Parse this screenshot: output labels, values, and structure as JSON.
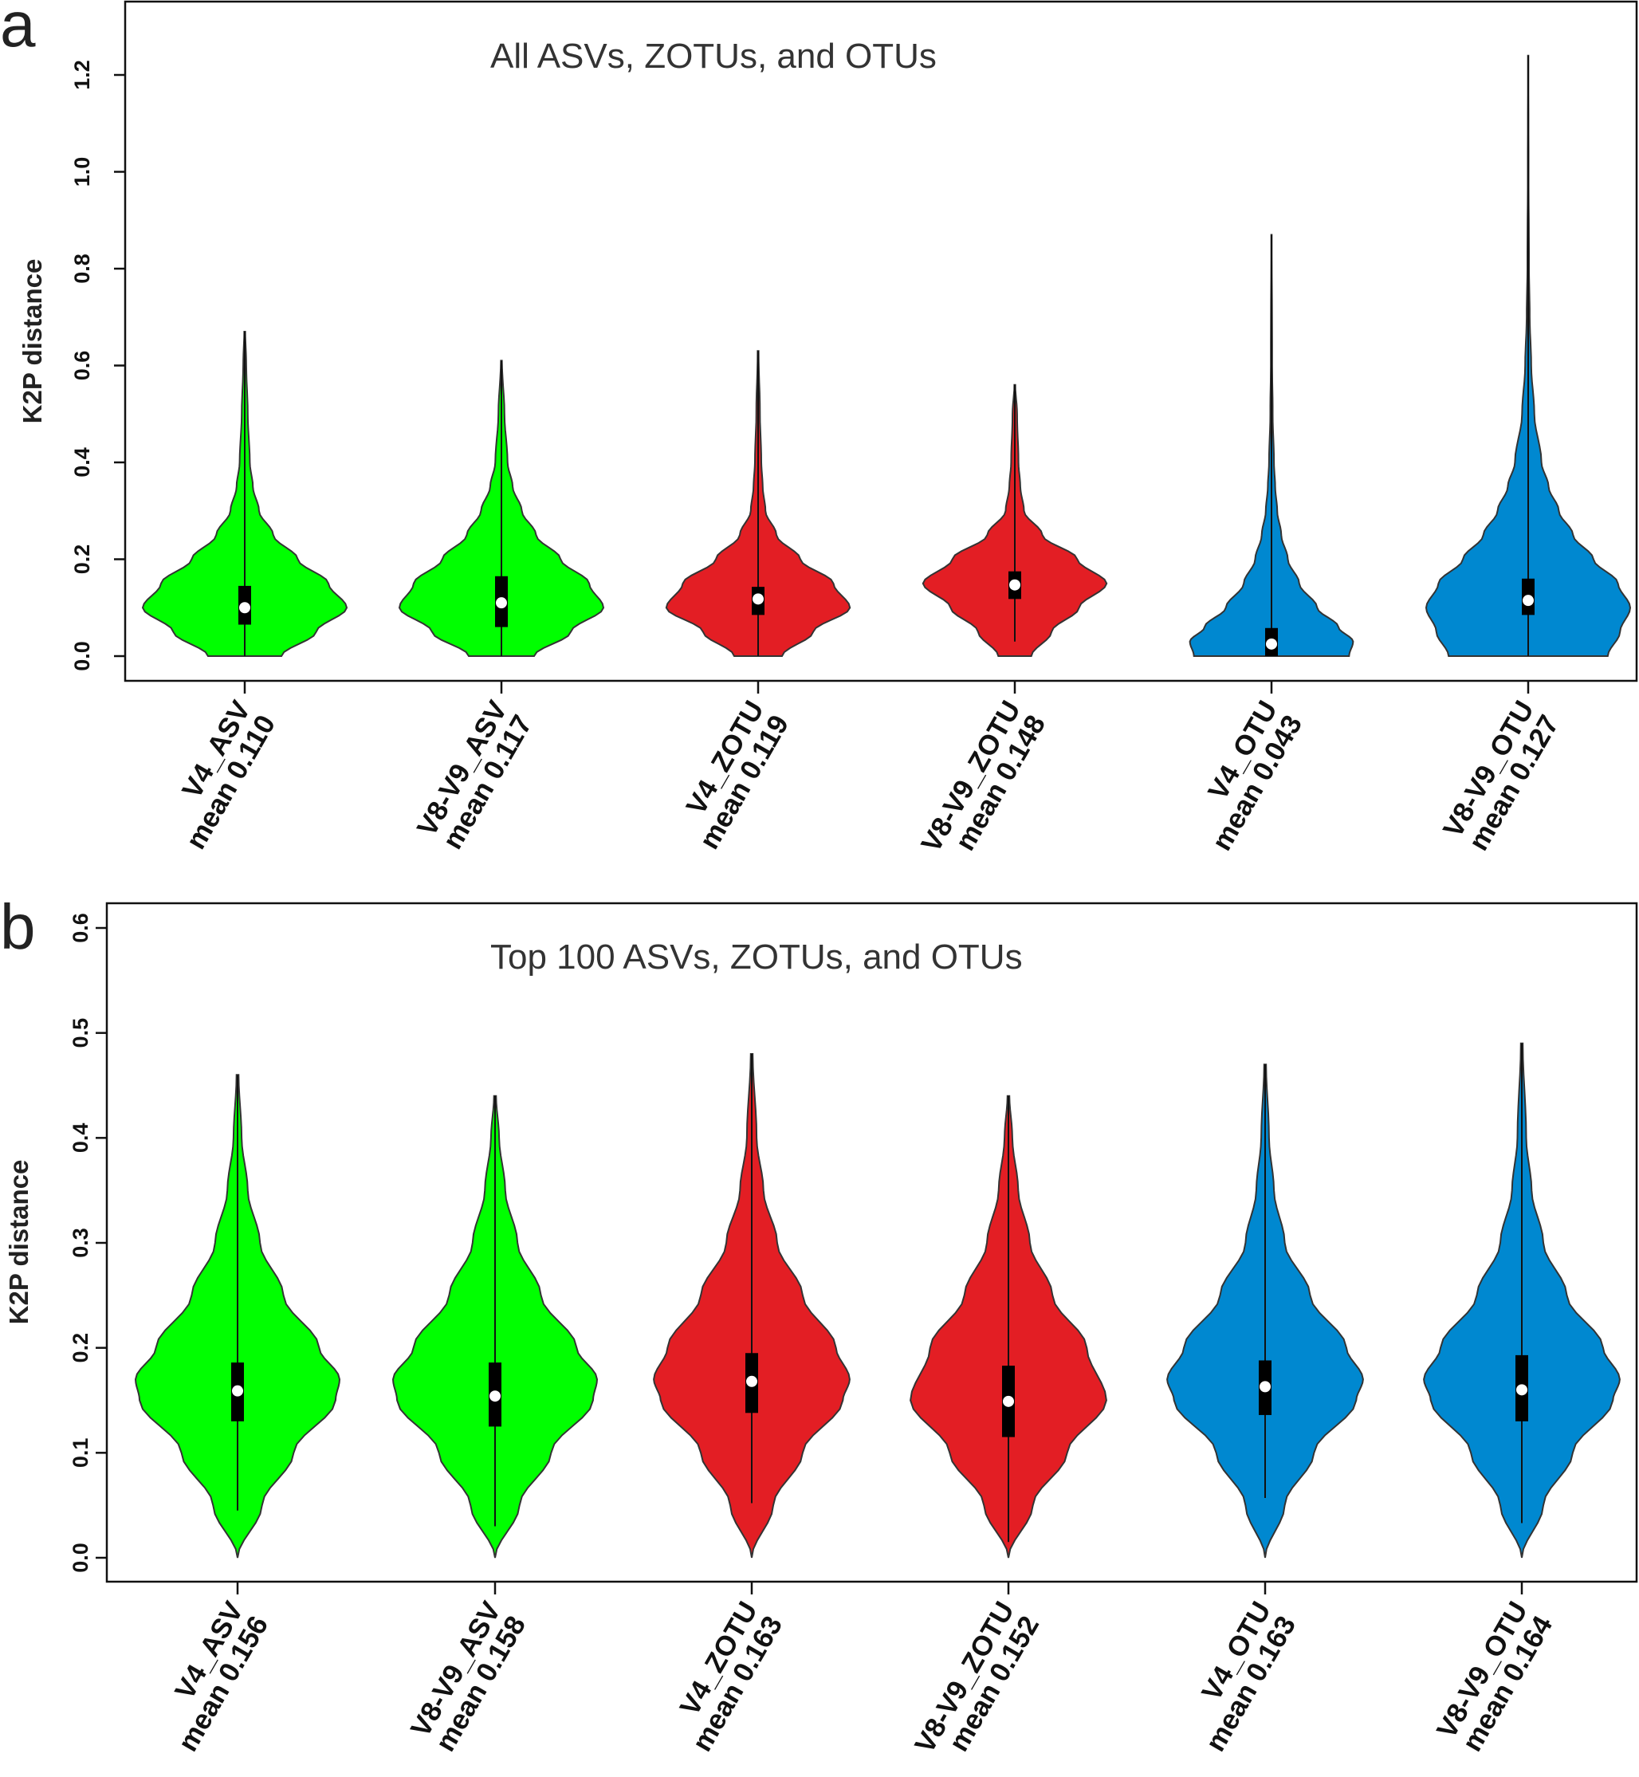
{
  "chart_data": [
    {
      "type": "violin",
      "panel_label": "a",
      "title": "All ASVs, ZOTUs, and OTUs",
      "xlabel": "",
      "ylabel": "K2P distance",
      "ylim": [
        -0.05,
        1.29
      ],
      "yticks": [
        0.0,
        0.2,
        0.4,
        0.6,
        0.8,
        1.0,
        1.2
      ],
      "ytick_labels": [
        "0.0",
        "0.2",
        "0.4",
        "0.6",
        "0.8",
        "1.0",
        "1.2"
      ],
      "grid": false,
      "categories": [
        {
          "name": "V4_ASV",
          "mean_label": "mean 0.110",
          "color": "#00ff00",
          "median": 0.1,
          "q1": 0.065,
          "q3": 0.145,
          "whisker_low": 0.0,
          "whisker_high": 0.26,
          "max": 0.67,
          "mode": 0.11,
          "density_width": 1.0,
          "profile": [
            [
              0,
              0.36
            ],
            [
              0.05,
              0.7
            ],
            [
              0.1,
              1.0
            ],
            [
              0.15,
              0.82
            ],
            [
              0.2,
              0.52
            ],
            [
              0.25,
              0.28
            ],
            [
              0.3,
              0.14
            ],
            [
              0.35,
              0.08
            ],
            [
              0.4,
              0.05
            ],
            [
              0.5,
              0.03
            ],
            [
              0.6,
              0.015
            ],
            [
              0.67,
              0.005
            ]
          ]
        },
        {
          "name": "V8-V9_ASV",
          "mean_label": "mean 0.117",
          "color": "#00ff00",
          "median": 0.11,
          "q1": 0.06,
          "q3": 0.165,
          "whisker_low": 0.0,
          "whisker_high": 0.32,
          "max": 0.61,
          "mode": 0.11,
          "density_width": 1.0,
          "profile": [
            [
              0,
              0.32
            ],
            [
              0.05,
              0.68
            ],
            [
              0.1,
              1.0
            ],
            [
              0.15,
              0.86
            ],
            [
              0.2,
              0.58
            ],
            [
              0.25,
              0.34
            ],
            [
              0.3,
              0.2
            ],
            [
              0.35,
              0.11
            ],
            [
              0.4,
              0.06
            ],
            [
              0.5,
              0.03
            ],
            [
              0.61,
              0.005
            ]
          ]
        },
        {
          "name": "V4_ZOTU",
          "mean_label": "mean 0.119",
          "color": "#e31e24",
          "median": 0.118,
          "q1": 0.085,
          "q3": 0.143,
          "whisker_low": 0.0,
          "whisker_high": 0.225,
          "max": 0.63,
          "mode": 0.11,
          "density_width": 0.9,
          "profile": [
            [
              0,
              0.26
            ],
            [
              0.05,
              0.6
            ],
            [
              0.1,
              1.0
            ],
            [
              0.15,
              0.82
            ],
            [
              0.2,
              0.46
            ],
            [
              0.25,
              0.2
            ],
            [
              0.3,
              0.08
            ],
            [
              0.35,
              0.05
            ],
            [
              0.4,
              0.035
            ],
            [
              0.5,
              0.02
            ],
            [
              0.63,
              0.005
            ]
          ]
        },
        {
          "name": "V8-V9_ZOTU",
          "mean_label": "mean 0.148",
          "color": "#e31e24",
          "median": 0.147,
          "q1": 0.118,
          "q3": 0.175,
          "whisker_low": 0.03,
          "whisker_high": 0.26,
          "max": 0.56,
          "mode": 0.15,
          "density_width": 0.9,
          "profile": [
            [
              0,
              0.18
            ],
            [
              0.05,
              0.4
            ],
            [
              0.1,
              0.7
            ],
            [
              0.15,
              1.0
            ],
            [
              0.2,
              0.68
            ],
            [
              0.25,
              0.3
            ],
            [
              0.3,
              0.1
            ],
            [
              0.35,
              0.06
            ],
            [
              0.4,
              0.04
            ],
            [
              0.5,
              0.025
            ],
            [
              0.56,
              0.005
            ]
          ]
        },
        {
          "name": "V4_OTU",
          "mean_label": "mean 0.043",
          "color": "#0088d0",
          "median": 0.025,
          "q1": 0.0,
          "q3": 0.058,
          "whisker_low": 0.0,
          "whisker_high": 0.145,
          "max": 0.87,
          "mode": 0.02,
          "density_width": 0.8,
          "profile": [
            [
              0,
              0.95
            ],
            [
              0.03,
              1.0
            ],
            [
              0.06,
              0.82
            ],
            [
              0.1,
              0.56
            ],
            [
              0.15,
              0.34
            ],
            [
              0.2,
              0.2
            ],
            [
              0.25,
              0.12
            ],
            [
              0.3,
              0.07
            ],
            [
              0.35,
              0.045
            ],
            [
              0.4,
              0.03
            ],
            [
              0.5,
              0.015
            ],
            [
              0.6,
              0.008
            ],
            [
              0.87,
              0.003
            ]
          ]
        },
        {
          "name": "V8-V9_OTU",
          "mean_label": "mean 0.127",
          "color": "#0088d0",
          "median": 0.115,
          "q1": 0.085,
          "q3": 0.16,
          "whisker_low": 0.0,
          "whisker_high": 0.265,
          "max": 1.24,
          "mode": 0.12,
          "density_width": 1.0,
          "profile": [
            [
              0,
              0.78
            ],
            [
              0.05,
              0.9
            ],
            [
              0.1,
              1.0
            ],
            [
              0.15,
              0.88
            ],
            [
              0.2,
              0.64
            ],
            [
              0.25,
              0.44
            ],
            [
              0.3,
              0.3
            ],
            [
              0.35,
              0.2
            ],
            [
              0.4,
              0.13
            ],
            [
              0.5,
              0.06
            ],
            [
              0.6,
              0.03
            ],
            [
              0.7,
              0.015
            ],
            [
              0.8,
              0.008
            ],
            [
              1.0,
              0.004
            ],
            [
              1.24,
              0.002
            ]
          ]
        }
      ]
    },
    {
      "type": "violin",
      "panel_label": "b",
      "title": "Top 100 ASVs, ZOTUs, and OTUs",
      "xlabel": "",
      "ylabel": "K2P distance",
      "ylim": [
        -0.025,
        0.63
      ],
      "yticks": [
        0.0,
        0.1,
        0.2,
        0.3,
        0.4,
        0.5,
        0.6
      ],
      "ytick_labels": [
        "0.0",
        "0.1",
        "0.2",
        "0.3",
        "0.4",
        "0.5",
        "0.6"
      ],
      "grid": false,
      "categories": [
        {
          "name": "V4_ASV",
          "mean_label": "mean 0.156",
          "color": "#00ff00",
          "median": 0.159,
          "q1": 0.13,
          "q3": 0.186,
          "whisker_low": 0.045,
          "whisker_high": 0.272,
          "max": 0.46,
          "mode": 0.16,
          "density_width": 1.0,
          "profile": [
            [
              0,
              0.0
            ],
            [
              0.05,
              0.24
            ],
            [
              0.1,
              0.55
            ],
            [
              0.15,
              0.96
            ],
            [
              0.17,
              1.0
            ],
            [
              0.2,
              0.8
            ],
            [
              0.25,
              0.45
            ],
            [
              0.3,
              0.22
            ],
            [
              0.35,
              0.1
            ],
            [
              0.4,
              0.04
            ],
            [
              0.46,
              0.01
            ]
          ]
        },
        {
          "name": "V8-V9_ASV",
          "mean_label": "mean 0.158",
          "color": "#00ff00",
          "median": 0.154,
          "q1": 0.125,
          "q3": 0.186,
          "whisker_low": 0.03,
          "whisker_high": 0.28,
          "max": 0.44,
          "mode": 0.16,
          "density_width": 1.0,
          "profile": [
            [
              0,
              0.0
            ],
            [
              0.05,
              0.24
            ],
            [
              0.1,
              0.55
            ],
            [
              0.15,
              0.96
            ],
            [
              0.17,
              1.0
            ],
            [
              0.2,
              0.8
            ],
            [
              0.25,
              0.45
            ],
            [
              0.3,
              0.22
            ],
            [
              0.35,
              0.1
            ],
            [
              0.4,
              0.04
            ],
            [
              0.44,
              0.01
            ]
          ]
        },
        {
          "name": "V4_ZOTU",
          "mean_label": "mean 0.163",
          "color": "#e31e24",
          "median": 0.168,
          "q1": 0.138,
          "q3": 0.195,
          "whisker_low": 0.052,
          "whisker_high": 0.28,
          "max": 0.48,
          "mode": 0.17,
          "density_width": 0.96,
          "profile": [
            [
              0,
              0.0
            ],
            [
              0.05,
              0.22
            ],
            [
              0.1,
              0.52
            ],
            [
              0.15,
              0.93
            ],
            [
              0.17,
              1.0
            ],
            [
              0.2,
              0.86
            ],
            [
              0.25,
              0.52
            ],
            [
              0.3,
              0.26
            ],
            [
              0.35,
              0.12
            ],
            [
              0.4,
              0.05
            ],
            [
              0.48,
              0.01
            ]
          ]
        },
        {
          "name": "V8-V9_ZOTU",
          "mean_label": "mean 0.152",
          "color": "#e31e24",
          "median": 0.149,
          "q1": 0.115,
          "q3": 0.183,
          "whisker_low": 0.015,
          "whisker_high": 0.28,
          "max": 0.44,
          "mode": 0.15,
          "density_width": 0.96,
          "profile": [
            [
              0,
              0.0
            ],
            [
              0.05,
              0.25
            ],
            [
              0.1,
              0.6
            ],
            [
              0.15,
              1.0
            ],
            [
              0.2,
              0.8
            ],
            [
              0.25,
              0.45
            ],
            [
              0.3,
              0.22
            ],
            [
              0.35,
              0.1
            ],
            [
              0.4,
              0.04
            ],
            [
              0.44,
              0.01
            ]
          ]
        },
        {
          "name": "V4_OTU",
          "mean_label": "mean 0.163",
          "color": "#0088d0",
          "median": 0.163,
          "q1": 0.136,
          "q3": 0.188,
          "whisker_low": 0.057,
          "whisker_high": 0.267,
          "max": 0.47,
          "mode": 0.17,
          "density_width": 0.96,
          "profile": [
            [
              0,
              0.0
            ],
            [
              0.05,
              0.2
            ],
            [
              0.1,
              0.5
            ],
            [
              0.15,
              0.93
            ],
            [
              0.17,
              1.0
            ],
            [
              0.2,
              0.83
            ],
            [
              0.25,
              0.46
            ],
            [
              0.3,
              0.2
            ],
            [
              0.35,
              0.09
            ],
            [
              0.4,
              0.04
            ],
            [
              0.47,
              0.01
            ]
          ]
        },
        {
          "name": "V8-V9_OTU",
          "mean_label": "mean 0.164",
          "color": "#0088d0",
          "median": 0.16,
          "q1": 0.13,
          "q3": 0.193,
          "whisker_low": 0.033,
          "whisker_high": 0.29,
          "max": 0.49,
          "mode": 0.17,
          "density_width": 0.96,
          "profile": [
            [
              0,
              0.0
            ],
            [
              0.05,
              0.22
            ],
            [
              0.1,
              0.52
            ],
            [
              0.15,
              0.93
            ],
            [
              0.17,
              1.0
            ],
            [
              0.2,
              0.83
            ],
            [
              0.25,
              0.46
            ],
            [
              0.3,
              0.22
            ],
            [
              0.35,
              0.1
            ],
            [
              0.4,
              0.045
            ],
            [
              0.49,
              0.01
            ]
          ]
        }
      ]
    }
  ]
}
